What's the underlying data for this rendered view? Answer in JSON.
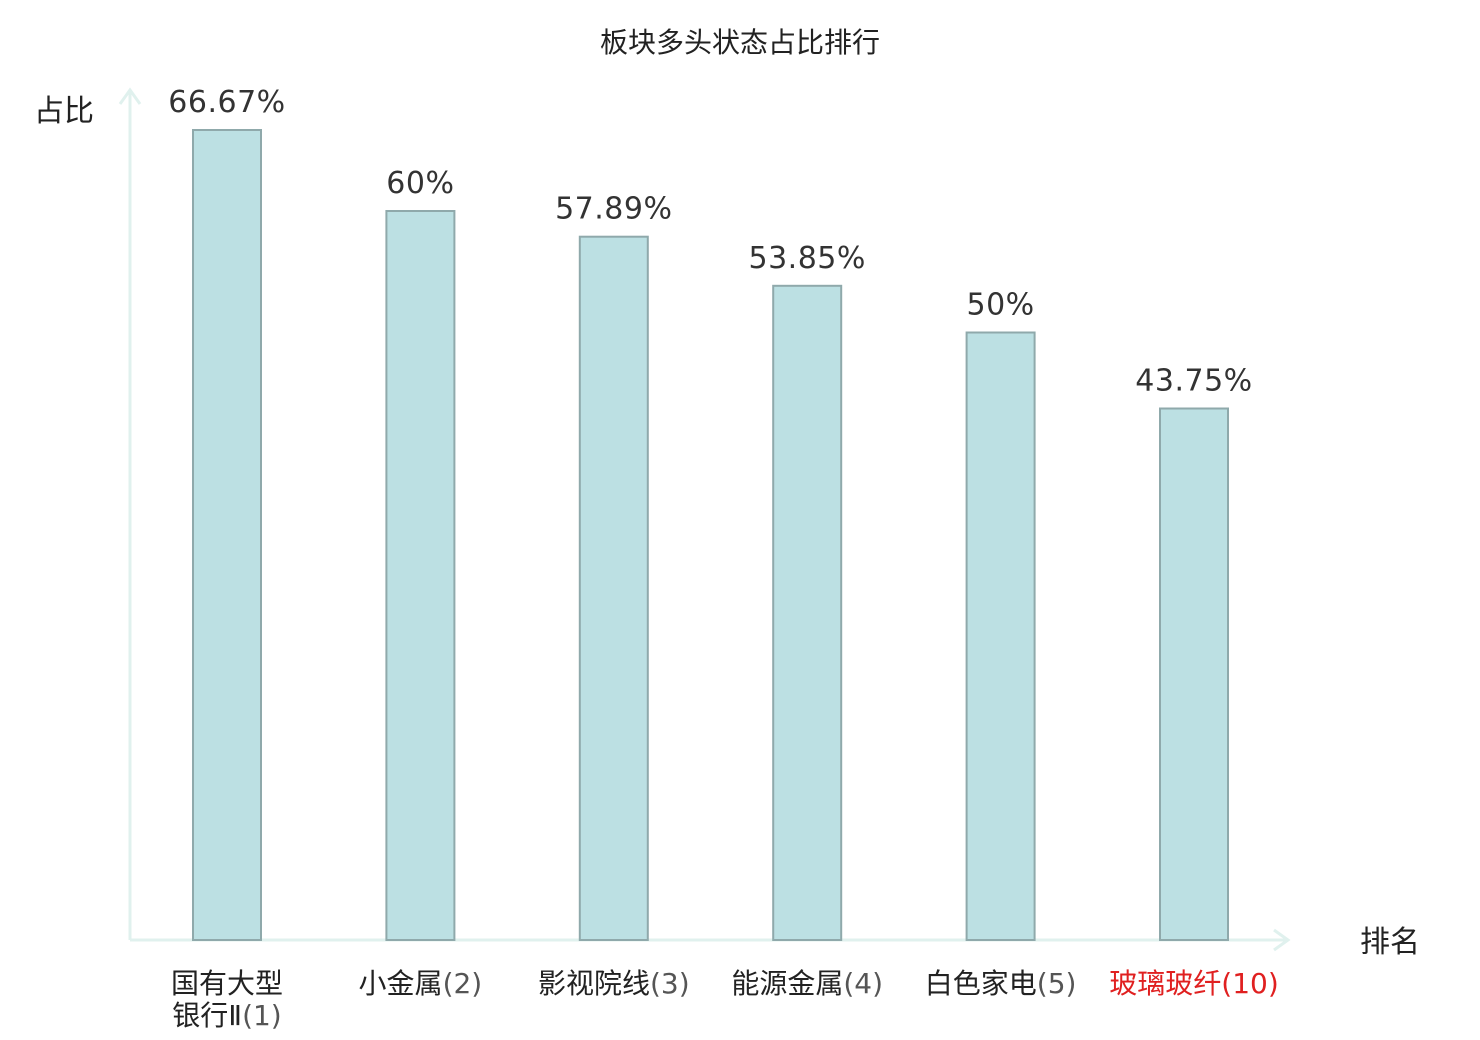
{
  "chart_data": {
    "type": "bar",
    "title": "板块多头状态占比排行",
    "ylabel": "占比",
    "xlabel": "排名",
    "ylim": [
      0,
      70
    ],
    "highlight_color": "#e02020",
    "bar_color": "#bce0e3",
    "categories": [
      {
        "name_lines": [
          "国有大型",
          "银行Ⅱ"
        ],
        "rank": "(1)",
        "value": 66.67,
        "label": "66.67%",
        "highlight": false
      },
      {
        "name_lines": [
          "小金属"
        ],
        "rank": "(2)",
        "value": 60,
        "label": "60%",
        "highlight": false
      },
      {
        "name_lines": [
          "影视院线"
        ],
        "rank": "(3)",
        "value": 57.89,
        "label": "57.89%",
        "highlight": false
      },
      {
        "name_lines": [
          "能源金属"
        ],
        "rank": "(4)",
        "value": 53.85,
        "label": "53.85%",
        "highlight": false
      },
      {
        "name_lines": [
          "白色家电"
        ],
        "rank": "(5)",
        "value": 50,
        "label": "50%",
        "highlight": false
      },
      {
        "name_lines": [
          "玻璃玻纤"
        ],
        "rank": "(10)",
        "value": 43.75,
        "label": "43.75%",
        "highlight": true
      }
    ]
  }
}
